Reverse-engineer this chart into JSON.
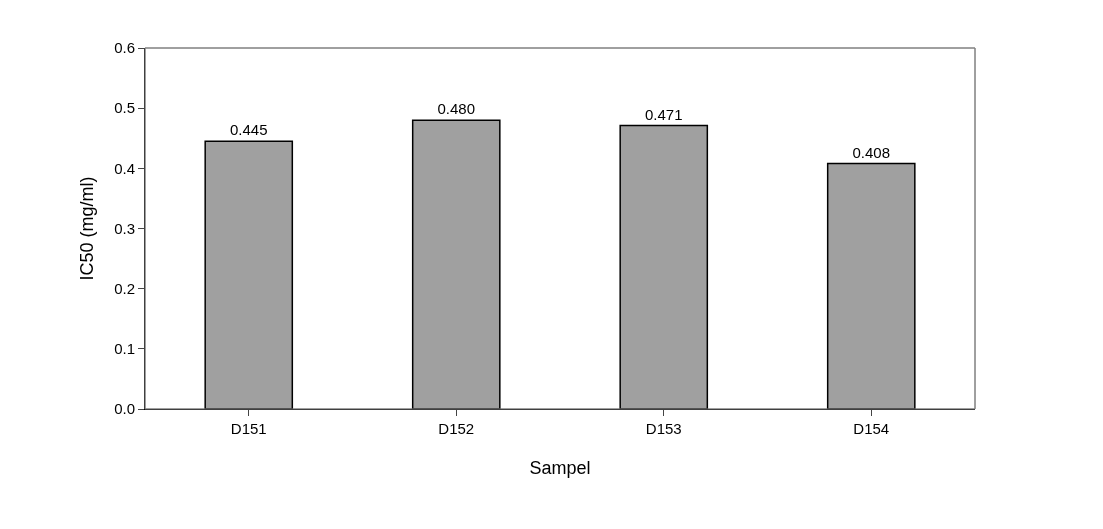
{
  "chart_data": {
    "type": "bar",
    "xlabel": "Sampel",
    "ylabel": "IC50 (mg/ml)",
    "categories": [
      "D151",
      "D152",
      "D153",
      "D154"
    ],
    "values": [
      0.445,
      0.48,
      0.471,
      0.408
    ],
    "value_labels": [
      "0.445",
      "0.480",
      "0.471",
      "0.408"
    ],
    "color": "#a0a0a0",
    "ylim": [
      0,
      0.6
    ],
    "yticks": [
      {
        "value": 0,
        "label": "0.0"
      },
      0.1,
      0.2,
      0.3,
      0.4,
      0.5,
      0.6
    ],
    "grid": false,
    "legend": false
  }
}
